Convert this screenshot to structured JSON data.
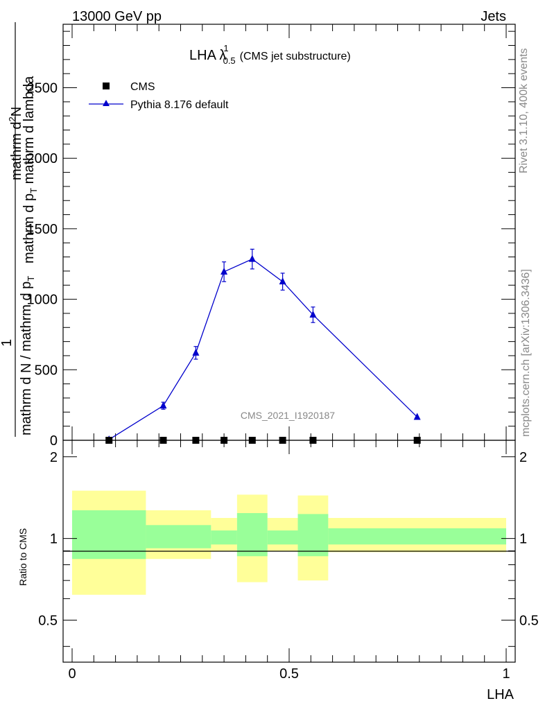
{
  "header": {
    "left": "13000 GeV pp",
    "right": "Jets"
  },
  "side": {
    "rivet": "Rivet 3.1.10,  400k events",
    "mcplots": "mcplots.cern.ch [arXiv:1306.3436]"
  },
  "chart_data": [
    {
      "type": "line",
      "title_main": "LHA λ",
      "title_sup": "1",
      "title_sub": "0.5",
      "title_note": "(CMS jet substructure)",
      "ylabel_frac_num": "1",
      "ylabel_denom": "mathrm d N / mathrm d p",
      "ylabel_denom_sub": "T",
      "ylabel_numer": "mathrm d",
      "ylabel_numer_sup": "2",
      "ylabel_numer_rest": "N",
      "ylabel_numer_den": "mathrm d p",
      "ylabel_numer_den_sub": "T",
      "ylabel_numer_den_rest": " mathrm d lambda",
      "watermark": "CMS_2021_I1920187",
      "xlim": [
        0,
        1
      ],
      "ylim": [
        0,
        2950
      ],
      "yticks": [
        0,
        500,
        1000,
        1500,
        2000,
        2500
      ],
      "ytick_labels": [
        "0",
        "500",
        "1000",
        "1500",
        "2000",
        "2500"
      ],
      "legend": [
        {
          "name": "CMS",
          "marker": "square",
          "color": "#000000"
        },
        {
          "name": "Pythia 8.176 default",
          "marker": "triangle",
          "color": "#0000cc"
        }
      ],
      "series": [
        {
          "name": "CMS",
          "x": [
            0.085,
            0.21,
            0.285,
            0.35,
            0.415,
            0.485,
            0.555,
            0.795
          ],
          "y": [
            0,
            0,
            0,
            0,
            0,
            0,
            0,
            0
          ]
        },
        {
          "name": "Pythia 8.176 default",
          "x": [
            0.085,
            0.21,
            0.285,
            0.35,
            0.415,
            0.485,
            0.555,
            0.795
          ],
          "y": [
            5,
            245,
            620,
            1195,
            1285,
            1125,
            890,
            165
          ],
          "err": [
            5,
            25,
            45,
            70,
            70,
            60,
            55,
            10
          ]
        }
      ]
    },
    {
      "type": "area",
      "ylabel": "Ratio to CMS",
      "xlabel": "LHA",
      "xlim": [
        0,
        1
      ],
      "ylim": [
        0.35,
        2.3
      ],
      "yticks": [
        0.5,
        1,
        2
      ],
      "ytick_labels": [
        "0.5",
        "1",
        "2"
      ],
      "xticks": [
        0,
        0.5,
        1
      ],
      "xtick_labels": [
        "0",
        "0.5",
        "1"
      ],
      "bins": [
        {
          "lo": 0.0,
          "hi": 0.17,
          "yellow": [
            0.62,
            1.5
          ],
          "green": [
            0.84,
            1.27
          ]
        },
        {
          "lo": 0.17,
          "hi": 0.32,
          "yellow": [
            0.84,
            1.27
          ],
          "green": [
            0.92,
            1.12
          ]
        },
        {
          "lo": 0.32,
          "hi": 0.38,
          "yellow": [
            0.9,
            1.19
          ],
          "green": [
            0.95,
            1.07
          ]
        },
        {
          "lo": 0.38,
          "hi": 0.45,
          "yellow": [
            0.69,
            1.45
          ],
          "green": [
            0.86,
            1.24
          ]
        },
        {
          "lo": 0.45,
          "hi": 0.52,
          "yellow": [
            0.9,
            1.19
          ],
          "green": [
            0.95,
            1.07
          ]
        },
        {
          "lo": 0.52,
          "hi": 0.59,
          "yellow": [
            0.7,
            1.44
          ],
          "green": [
            0.86,
            1.23
          ]
        },
        {
          "lo": 0.59,
          "hi": 1.0,
          "yellow": [
            0.89,
            1.19
          ],
          "green": [
            0.95,
            1.09
          ]
        }
      ]
    }
  ]
}
